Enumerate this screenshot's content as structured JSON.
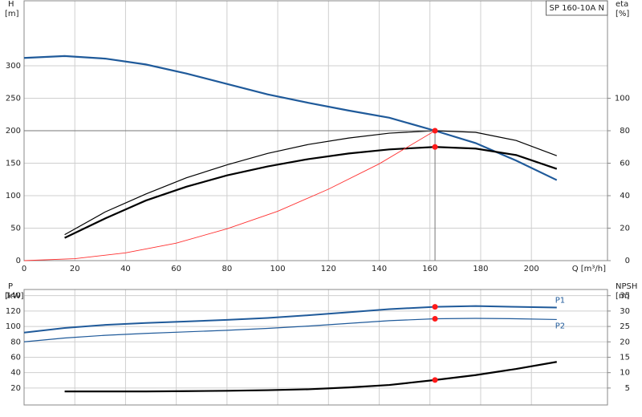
{
  "chart_data": [
    {
      "type": "line",
      "legend_box": "SP 160-10A N",
      "y_label": "H",
      "y_unit": "[m]",
      "y2_label": "eta",
      "y2_unit": "[%]",
      "x_label": "Q [m³/h]",
      "xlim": [
        0,
        230
      ],
      "xticks": [
        0,
        20,
        40,
        60,
        80,
        100,
        120,
        140,
        160,
        180,
        200
      ],
      "ylim": [
        0,
        400
      ],
      "yticks": [
        0,
        50,
        100,
        150,
        200,
        250,
        300
      ],
      "y2lim": [
        0,
        160
      ],
      "y2ticks": [
        0,
        20,
        40,
        60,
        80,
        100
      ],
      "grid": true,
      "duty_point_x": 162,
      "series": [
        {
          "color": "#1f5a9a",
          "width": 2.2,
          "axis": "y",
          "duty_marker": true,
          "x": [
            0,
            16,
            32,
            48,
            64,
            80,
            96,
            112,
            128,
            144,
            162,
            178,
            194,
            210
          ],
          "values": [
            312,
            315,
            311,
            302,
            288,
            272,
            256,
            243,
            231,
            220,
            200,
            181,
            154,
            124
          ]
        },
        {
          "color": "#000000",
          "width": 1.2,
          "axis": "y2",
          "duty_marker": false,
          "x": [
            0,
            16,
            32,
            48,
            64,
            80,
            96,
            112,
            128,
            144,
            162,
            178,
            194,
            210
          ],
          "values": [
            null,
            16,
            30,
            41,
            51,
            59,
            66,
            71.5,
            75.5,
            78.5,
            80,
            79,
            74,
            64.6
          ]
        },
        {
          "color": "#000000",
          "width": 2.2,
          "axis": "y2",
          "duty_marker": true,
          "x": [
            0,
            16,
            32,
            48,
            64,
            80,
            96,
            112,
            128,
            144,
            162,
            178,
            194,
            210
          ],
          "values": [
            null,
            14,
            26,
            37,
            45.5,
            52.5,
            58,
            62.5,
            66,
            68.5,
            70,
            69,
            65,
            56.5
          ]
        },
        {
          "color": "#ff3030",
          "width": 0.9,
          "axis": "y",
          "duty_marker": false,
          "x": [
            0,
            20,
            40,
            60,
            80,
            100,
            120,
            140,
            162
          ],
          "values": [
            0,
            3,
            12,
            27,
            49,
            76,
            110,
            149,
            200
          ]
        }
      ]
    },
    {
      "type": "line",
      "y_label": "P",
      "y_unit": "[kW]",
      "y2_label": "NPSH",
      "y2_unit": "[m]",
      "xlim": [
        0,
        230
      ],
      "xticks": [
        0,
        20,
        40,
        60,
        80,
        100,
        120,
        140,
        160,
        180,
        200
      ],
      "xtick_labels": false,
      "ylim": [
        -2,
        148
      ],
      "yticks": [
        20,
        40,
        60,
        80,
        100,
        120,
        140
      ],
      "y2lim": [
        -0.5,
        37
      ],
      "y2ticks": [
        5,
        10,
        15,
        20,
        25,
        30,
        35
      ],
      "grid": true,
      "duty_point_x": 162,
      "series": [
        {
          "name": "P1",
          "color": "#1f5a9a",
          "width": 2.0,
          "axis": "y",
          "duty_marker": true,
          "x": [
            0,
            16,
            32,
            48,
            64,
            80,
            96,
            112,
            128,
            144,
            162,
            178,
            194,
            210
          ],
          "values": [
            92,
            98,
            102,
            104.5,
            106.5,
            108.5,
            111,
            114.5,
            118.5,
            122.5,
            125.5,
            126.5,
            125.5,
            124.5
          ]
        },
        {
          "name": "P2",
          "color": "#1f5a9a",
          "width": 1.2,
          "axis": "y",
          "duty_marker": true,
          "x": [
            0,
            16,
            32,
            48,
            64,
            80,
            96,
            112,
            128,
            144,
            162,
            178,
            194,
            210
          ],
          "values": [
            80,
            85,
            88.5,
            91,
            93,
            95,
            97.5,
            100.5,
            104,
            107.5,
            110,
            110.5,
            110,
            109
          ]
        },
        {
          "color": "#000000",
          "width": 2.2,
          "axis": "y2",
          "duty_marker": true,
          "x": [
            0,
            16,
            32,
            48,
            64,
            80,
            96,
            112,
            128,
            144,
            162,
            178,
            194,
            210
          ],
          "values": [
            null,
            3.9,
            3.9,
            3.9,
            4.0,
            4.1,
            4.3,
            4.6,
            5.2,
            6.0,
            7.6,
            9.2,
            11.2,
            13.5
          ]
        }
      ]
    }
  ]
}
